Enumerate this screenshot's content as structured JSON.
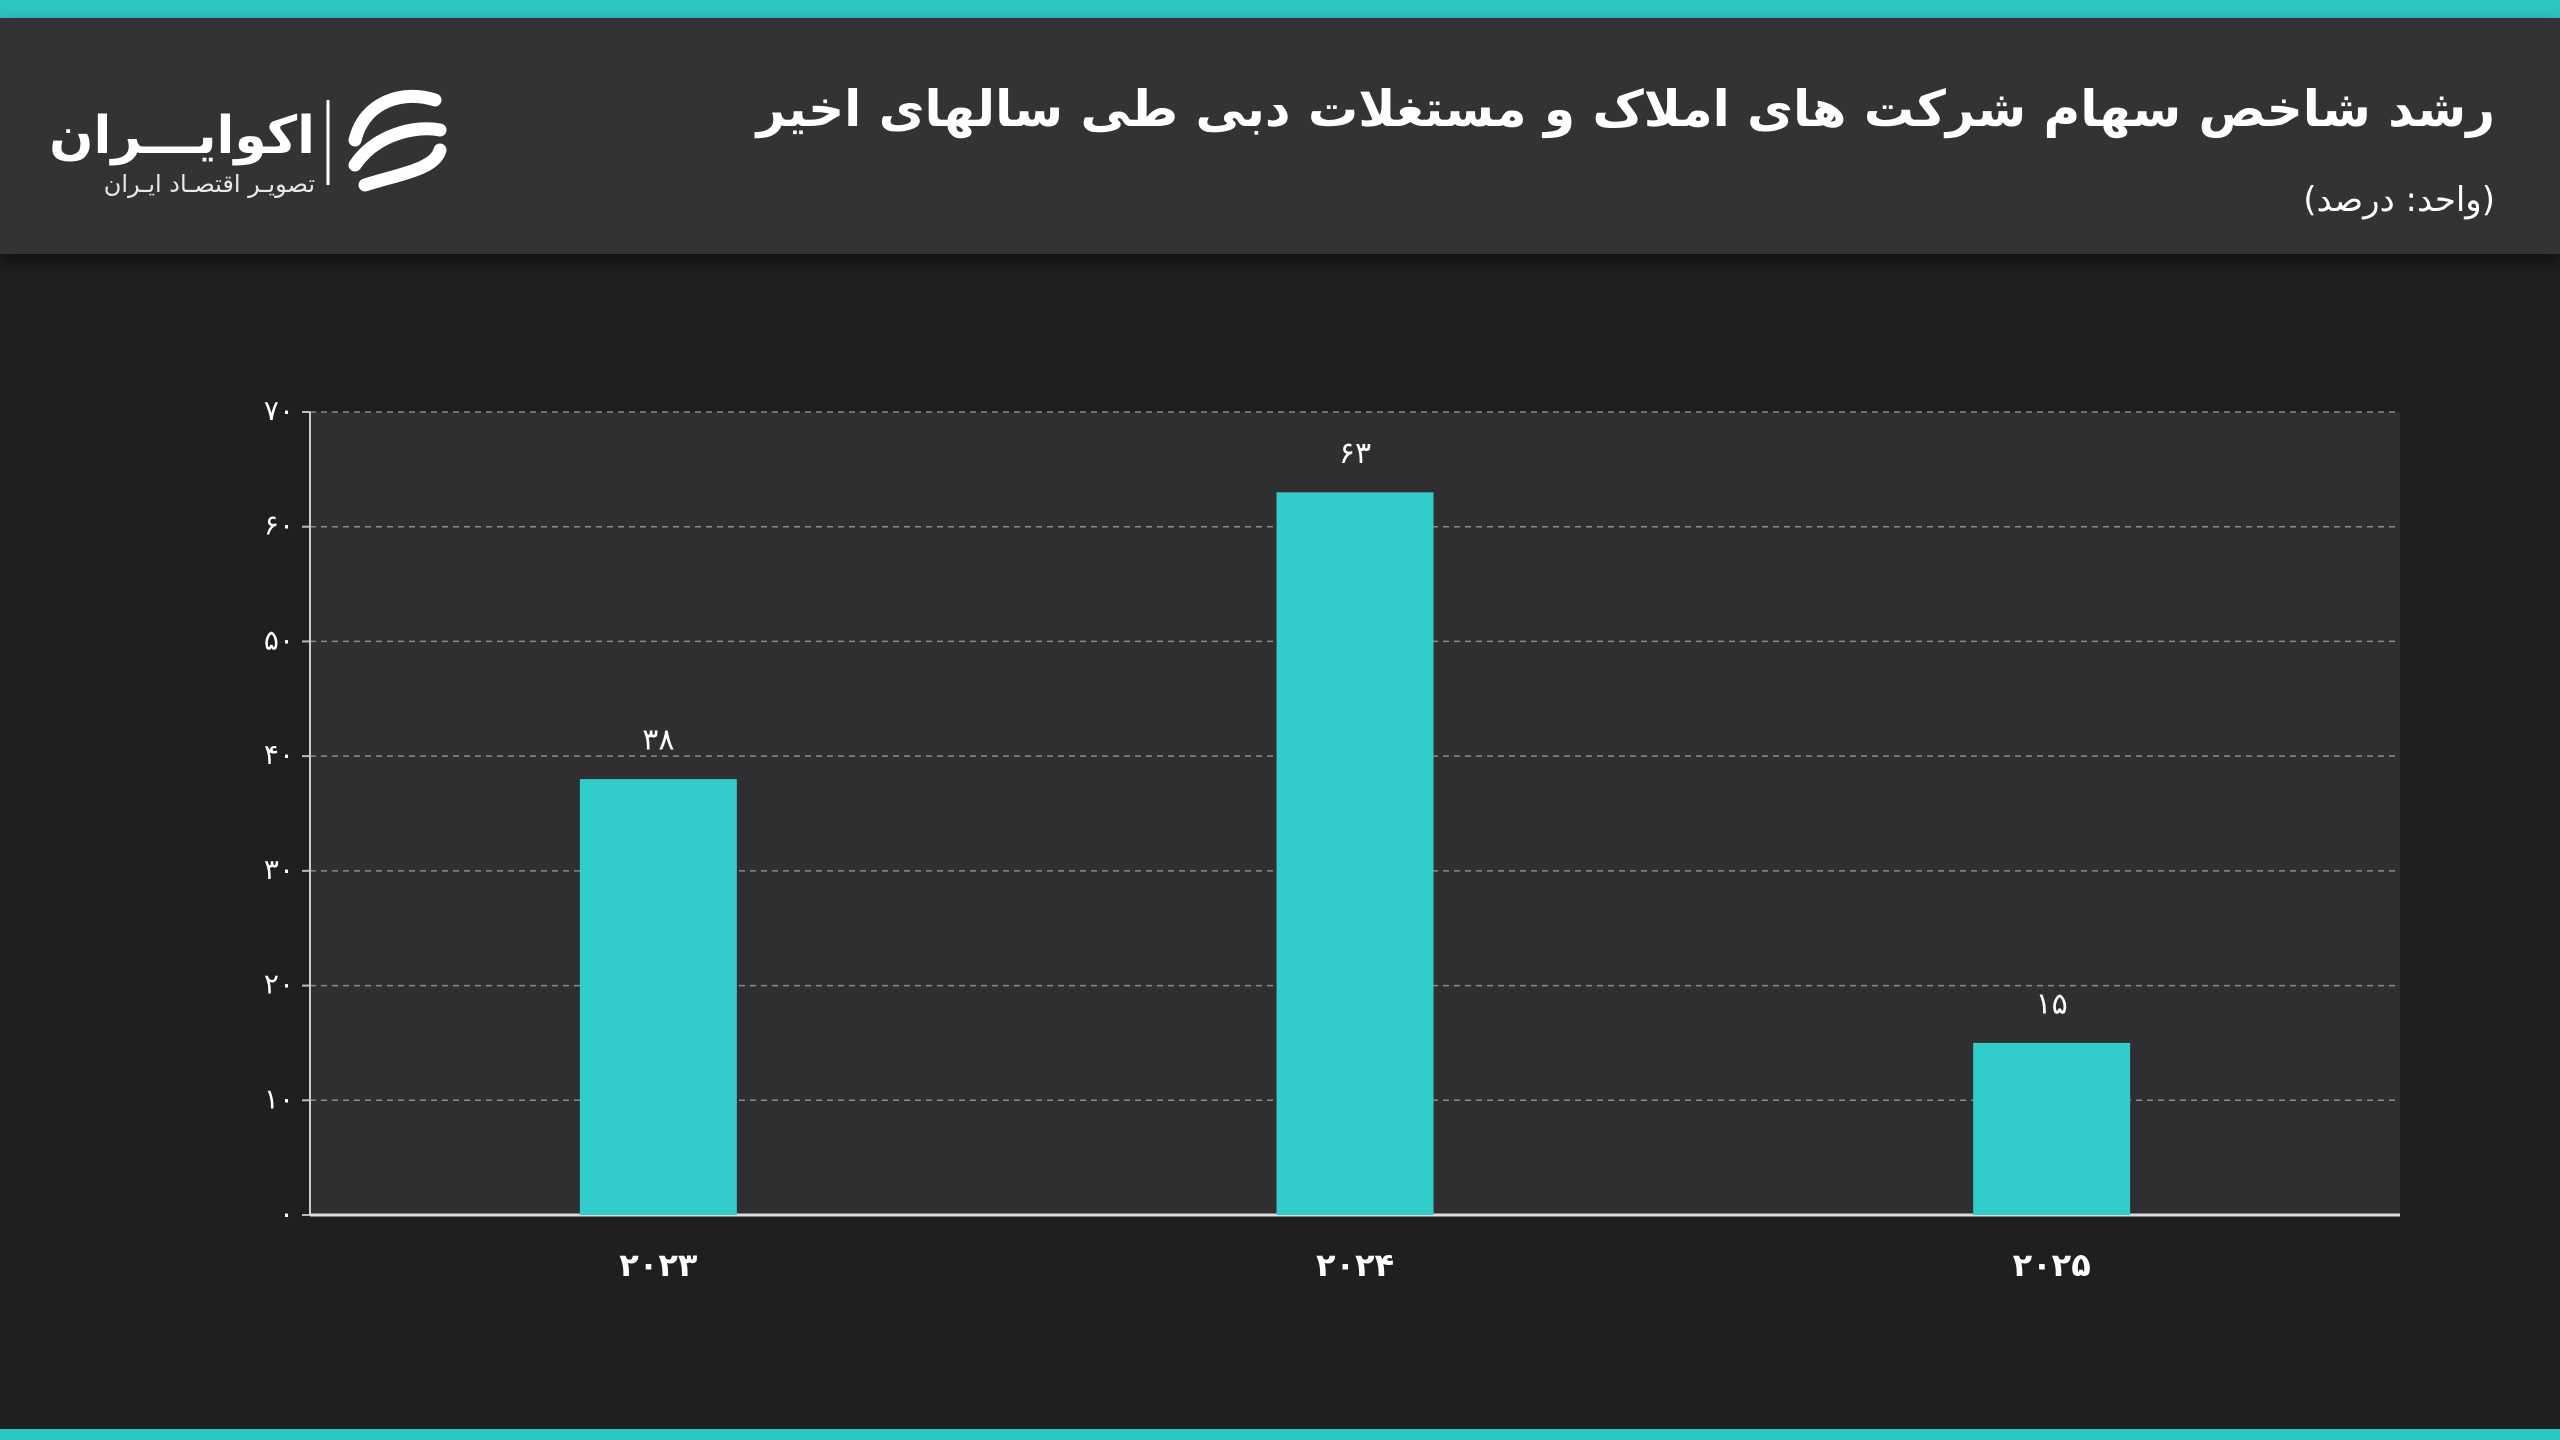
{
  "header": {
    "logo_name": "اکوایـــران",
    "logo_tagline": "تصویـر اقتصـاد ایـران"
  },
  "chart_data": {
    "type": "bar",
    "title": "رشد شاخص سهام شرکت های املاک و مستغلات دبی طی سالهای اخیر",
    "subtitle": "(واحد: درصد)",
    "categories": [
      "۲۰۲۳",
      "۲۰۲۴",
      "۲۰۲۵"
    ],
    "values": [
      38,
      63,
      15
    ],
    "value_labels": [
      "۳۸",
      "۶۳",
      "۱۵"
    ],
    "color": "#33cccc",
    "ylim": [
      0,
      70
    ],
    "yticks": [
      {
        "value": 0,
        "label": "۰"
      },
      {
        "value": 10,
        "label": "۱۰"
      },
      {
        "value": 20,
        "label": "۲۰"
      },
      {
        "value": 30,
        "label": "۳۰"
      },
      {
        "value": 40,
        "label": "۴۰"
      },
      {
        "value": 50,
        "label": "۵۰"
      },
      {
        "value": 60,
        "label": "۶۰"
      },
      {
        "value": 70,
        "label": "۷۰"
      }
    ],
    "grid": true
  }
}
